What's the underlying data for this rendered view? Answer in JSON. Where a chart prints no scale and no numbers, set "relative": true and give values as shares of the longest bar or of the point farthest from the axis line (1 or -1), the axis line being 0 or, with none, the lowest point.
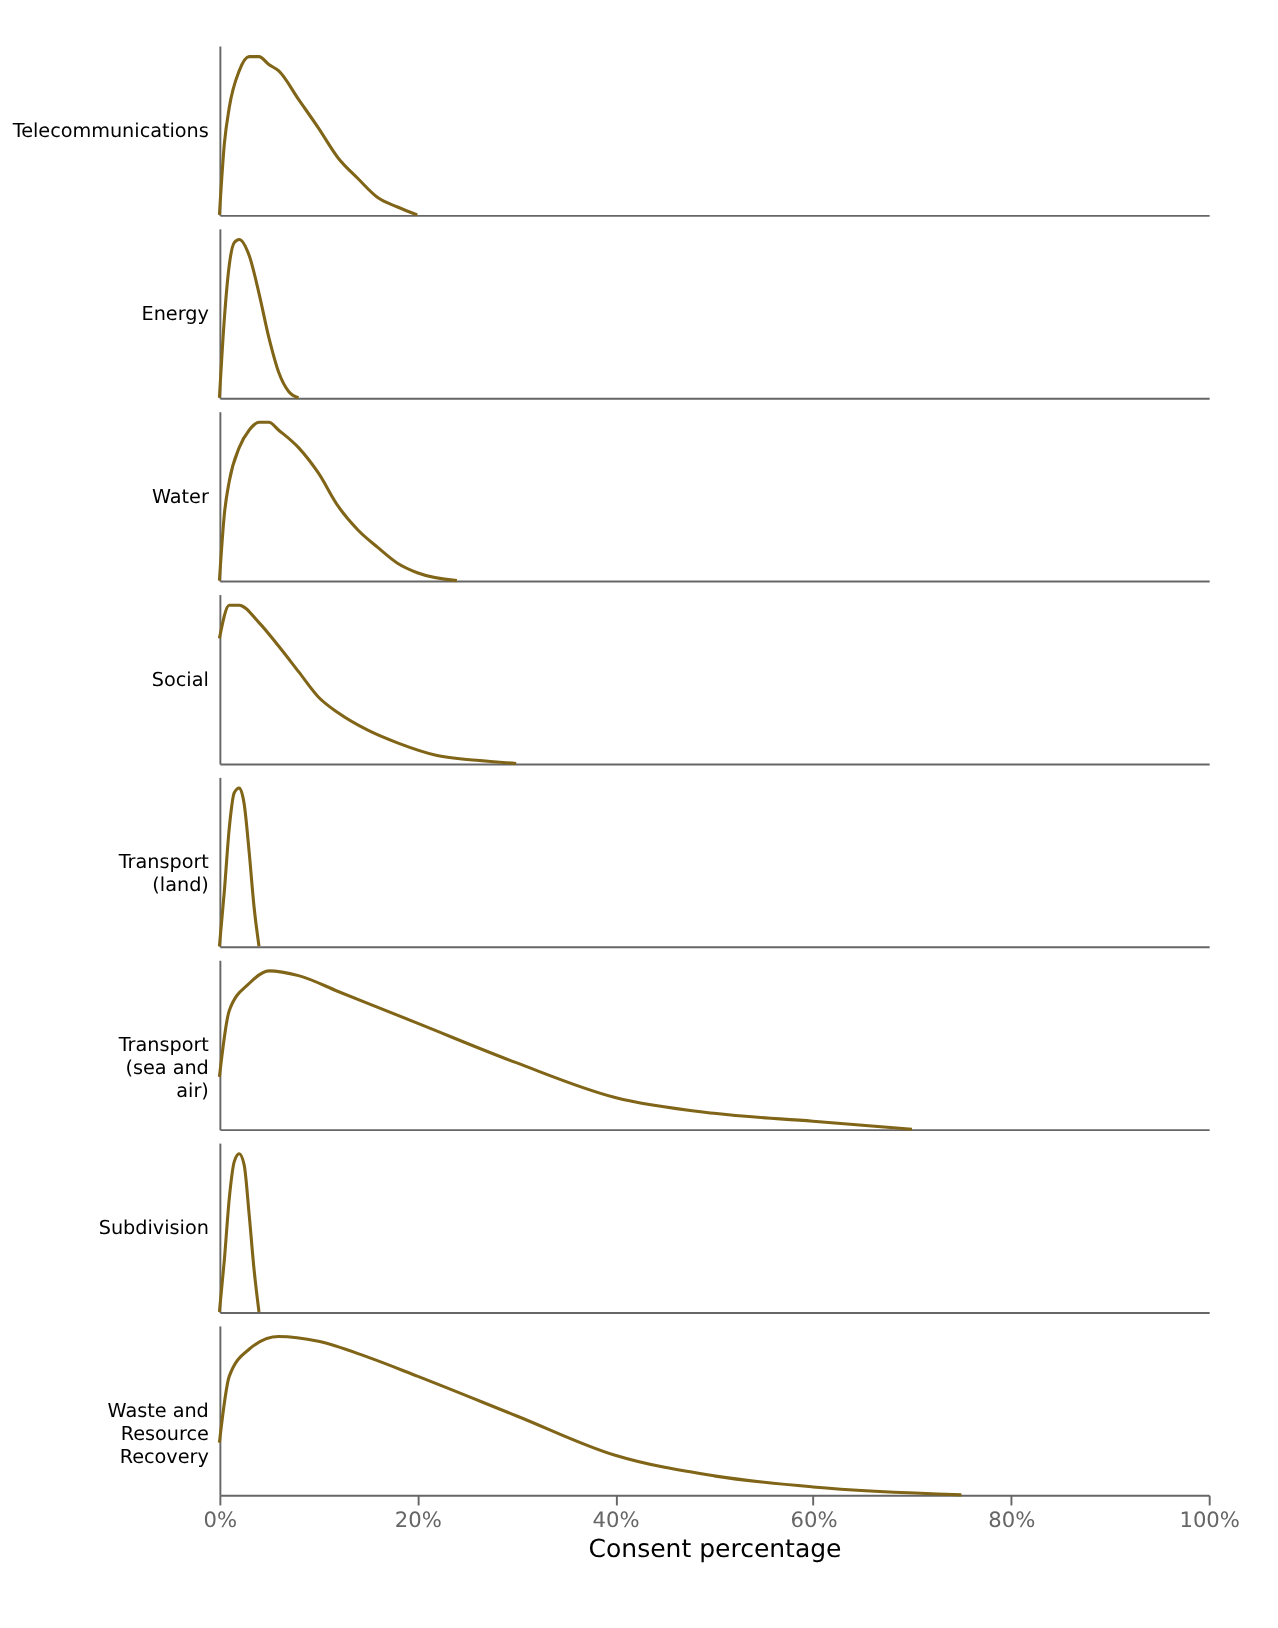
{
  "chart_data": [
    {
      "type": "line",
      "ylabel": "Telecommunications",
      "relative": true,
      "xlim": [
        0,
        100
      ],
      "tick_labels": false,
      "x": [
        0,
        0.5,
        1,
        2,
        3,
        4,
        5,
        6,
        8,
        10,
        12,
        14,
        16,
        18,
        20
      ],
      "series": [
        {
          "color": "#806518",
          "values": [
            0,
            0.45,
            0.68,
            0.91,
            1,
            1,
            0.95,
            0.91,
            0.73,
            0.55,
            0.36,
            0.23,
            0.11,
            0.05,
            0
          ]
        }
      ]
    },
    {
      "type": "line",
      "ylabel": "Energy",
      "relative": true,
      "xlim": [
        0,
        100
      ],
      "tick_labels": false,
      "x": [
        0,
        0.5,
        1,
        1.5,
        2,
        3,
        4,
        5,
        6,
        7,
        8
      ],
      "series": [
        {
          "color": "#806518",
          "values": [
            0,
            0.5,
            0.84,
            0.98,
            1,
            0.9,
            0.66,
            0.38,
            0.16,
            0.04,
            0
          ]
        }
      ]
    },
    {
      "type": "line",
      "ylabel": "Water",
      "relative": true,
      "xlim": [
        0,
        100
      ],
      "tick_labels": false,
      "x": [
        0,
        0.5,
        1,
        2,
        3,
        4,
        5,
        6,
        8,
        10,
        12,
        14,
        16,
        18,
        20,
        24
      ],
      "series": [
        {
          "color": "#806518",
          "values": [
            0,
            0.42,
            0.63,
            0.84,
            0.95,
            1,
            1,
            0.95,
            0.84,
            0.68,
            0.47,
            0.32,
            0.21,
            0.11,
            0.05,
            0
          ]
        }
      ]
    },
    {
      "type": "line",
      "ylabel": "Social",
      "relative": true,
      "xlim": [
        0,
        100
      ],
      "tick_labels": false,
      "x": [
        0,
        1,
        2,
        4,
        6,
        8,
        10,
        12,
        15,
        18,
        22,
        26,
        30
      ],
      "series": [
        {
          "color": "#806518",
          "values": [
            0.79,
            1,
            1,
            0.89,
            0.74,
            0.58,
            0.42,
            0.32,
            0.21,
            0.13,
            0.05,
            0.02,
            0
          ]
        }
      ]
    },
    {
      "type": "line",
      "ylabel": "Transport (land)",
      "relative": true,
      "xlim": [
        0,
        100
      ],
      "tick_labels": false,
      "x": [
        0,
        0.5,
        1,
        1.5,
        2,
        2.5,
        3,
        3.5,
        4
      ],
      "series": [
        {
          "color": "#806518",
          "values": [
            0,
            0.35,
            0.75,
            0.97,
            1.0,
            0.9,
            0.6,
            0.25,
            0
          ]
        }
      ]
    },
    {
      "type": "line",
      "ylabel": "Transport (sea and air)",
      "relative": true,
      "xlim": [
        0,
        100
      ],
      "tick_labels": false,
      "x": [
        0,
        1,
        3,
        5,
        8,
        12,
        20,
        30,
        40,
        50,
        60,
        70
      ],
      "series": [
        {
          "color": "#806518",
          "values": [
            0.33,
            0.75,
            0.92,
            1,
            0.97,
            0.87,
            0.67,
            0.42,
            0.2,
            0.1,
            0.05,
            0
          ]
        }
      ]
    },
    {
      "type": "line",
      "ylabel": "Subdivision",
      "relative": true,
      "xlim": [
        0,
        100
      ],
      "tick_labels": false,
      "x": [
        0,
        0.5,
        1,
        1.5,
        2,
        2.5,
        3,
        3.5,
        4
      ],
      "series": [
        {
          "color": "#806518",
          "values": [
            0,
            0.33,
            0.72,
            0.95,
            1.0,
            0.93,
            0.62,
            0.27,
            0
          ]
        }
      ]
    },
    {
      "type": "line",
      "ylabel": "Waste and Resource Recovery",
      "xlabel": "Consent percentage",
      "relative": true,
      "xlim": [
        0,
        100
      ],
      "tick_labels": "x",
      "xticks": [
        {
          "value": 0,
          "label": "0%"
        },
        {
          "value": 20,
          "label": "20%"
        },
        {
          "value": 40,
          "label": "40%"
        },
        {
          "value": 60,
          "label": "60%"
        },
        {
          "value": 80,
          "label": "80%"
        },
        {
          "value": 100,
          "label": "100%"
        }
      ],
      "x": [
        0,
        1,
        3,
        6,
        10,
        15,
        20,
        30,
        40,
        50,
        60,
        75
      ],
      "series": [
        {
          "color": "#806518",
          "values": [
            0.33,
            0.75,
            0.92,
            1,
            0.97,
            0.87,
            0.75,
            0.5,
            0.25,
            0.12,
            0.05,
            0
          ]
        }
      ]
    }
  ]
}
